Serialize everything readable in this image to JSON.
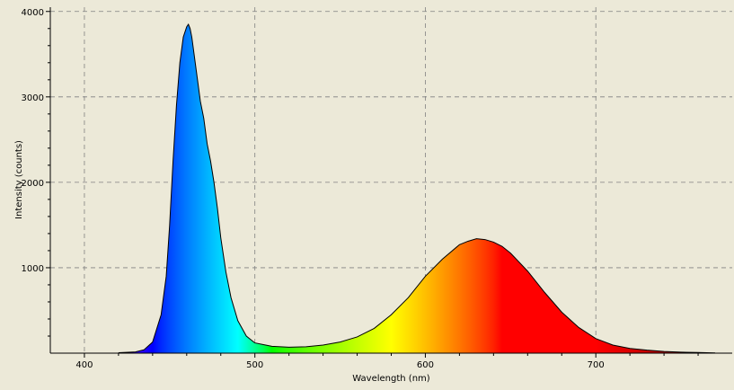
{
  "chart_data": {
    "type": "area",
    "title": "",
    "xlabel": "Wavelength (nm)",
    "ylabel": "Intensity (counts)",
    "xlim": [
      380,
      780
    ],
    "ylim": [
      0,
      4050
    ],
    "x_ticks": [
      400,
      500,
      600,
      700
    ],
    "y_ticks": [
      1000,
      2000,
      3000,
      4000
    ],
    "grid": true,
    "fill": "visible-spectrum-gradient",
    "series": [
      {
        "x": [
          420,
          430,
          435,
          440,
          445,
          448,
          450,
          452,
          454,
          456,
          458,
          460,
          461,
          462,
          463,
          464,
          466,
          468,
          470,
          472,
          474,
          476,
          478,
          480,
          483,
          486,
          490,
          495,
          500,
          505,
          510,
          520,
          530,
          540,
          550,
          560,
          570,
          580,
          590,
          600,
          610,
          620,
          625,
          630,
          635,
          640,
          645,
          650,
          660,
          670,
          680,
          690,
          700,
          710,
          720,
          730,
          740,
          750,
          760,
          770
        ],
        "values": [
          5,
          15,
          40,
          130,
          450,
          900,
          1500,
          2250,
          2900,
          3400,
          3700,
          3820,
          3850,
          3800,
          3700,
          3550,
          3250,
          2950,
          2750,
          2450,
          2250,
          2000,
          1700,
          1350,
          950,
          650,
          380,
          200,
          120,
          100,
          80,
          70,
          75,
          95,
          130,
          190,
          290,
          450,
          650,
          900,
          1100,
          1270,
          1310,
          1340,
          1330,
          1300,
          1250,
          1170,
          960,
          710,
          480,
          300,
          170,
          95,
          55,
          35,
          20,
          12,
          8,
          3
        ]
      }
    ],
    "colors": {
      "background": "#ECE9D8",
      "grid": "#808080",
      "axis": "#000000",
      "outline": "#000000"
    }
  }
}
